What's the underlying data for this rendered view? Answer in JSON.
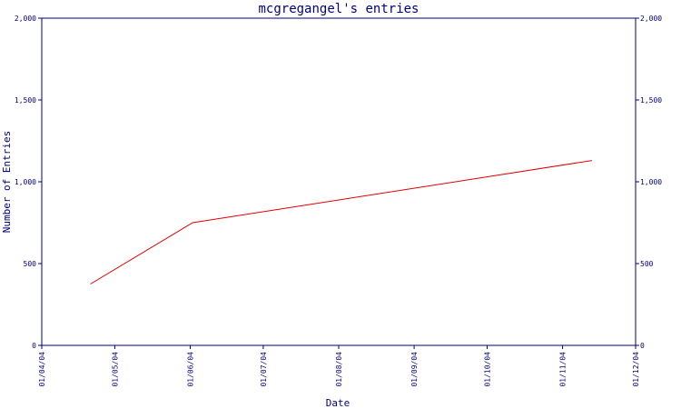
{
  "chart_data": {
    "type": "line",
    "title": "mcgregangel's entries",
    "xlabel": "Date",
    "ylabel": "Number of Entries",
    "xlim": [
      "2004-04-01",
      "2004-12-01"
    ],
    "ylim": [
      0,
      2000
    ],
    "y_ticks": [
      0,
      500,
      1000,
      1500,
      2000
    ],
    "y_tick_labels": [
      "0",
      "500",
      "1,000",
      "1,500",
      "2,000"
    ],
    "x_ticks": [
      "2004-04-01",
      "2004-05-01",
      "2004-06-01",
      "2004-07-01",
      "2004-08-01",
      "2004-09-01",
      "2004-10-01",
      "2004-11-01",
      "2004-12-01"
    ],
    "x_tick_labels": [
      "01/04/04",
      "01/05/04",
      "01/06/04",
      "01/07/04",
      "01/08/04",
      "01/09/04",
      "01/10/04",
      "01/11/04",
      "01/12/04"
    ],
    "right_axis_mirrored": true,
    "grid": false,
    "series": [
      {
        "color": "#e00000",
        "points": [
          {
            "x": "2004-04-21",
            "y": 375
          },
          {
            "x": "2004-06-02",
            "y": 750
          },
          {
            "x": "2004-11-13",
            "y": 1130
          }
        ]
      }
    ]
  }
}
